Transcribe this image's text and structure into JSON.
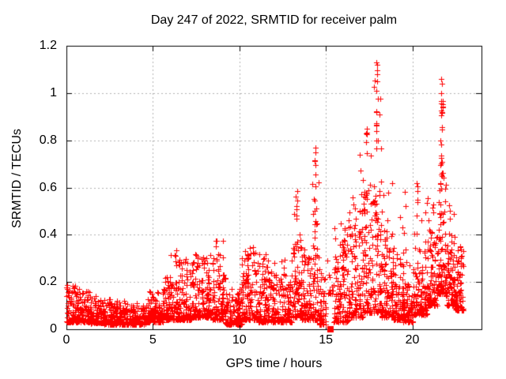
{
  "chart_data": {
    "type": "scatter",
    "title": "Day 247 of 2022, SRMTID for receiver palm",
    "xlabel": "GPS time / hours",
    "ylabel": "SRMTID / TECUs",
    "xlim": [
      0,
      24
    ],
    "ylim": [
      0,
      1.2
    ],
    "xticks": [
      0,
      5,
      10,
      15,
      20
    ],
    "xtick_labels": [
      "0",
      "5",
      "10",
      "15",
      "20"
    ],
    "yticks": [
      0,
      0.2,
      0.4,
      0.6,
      0.8,
      1,
      1.2
    ],
    "ytick_labels": [
      "0",
      "0.2",
      "0.4",
      "0.6",
      "0.8",
      "1",
      "1.2"
    ],
    "grid": true,
    "grid_style": "dotted-gray",
    "grid_color": "#b3b3b3",
    "border_color": "#000000",
    "marker": {
      "shape": "plus",
      "color": "#ff0000",
      "size": 7
    },
    "gap_marker": {
      "x": 15.28,
      "y": 0,
      "shape": "filled-square",
      "color": "#ff0000",
      "size": 8
    },
    "scatter_model": {
      "seed": 20220247,
      "tail_fraction": 0.07,
      "skew": 2.2,
      "segment_format": [
        "t0",
        "t1",
        "n",
        "y_lo",
        "y_hi",
        "y_tail_max"
      ],
      "segments": [
        [
          0.0,
          0.6,
          85,
          0.03,
          0.17,
          0.19
        ],
        [
          0.6,
          1.35,
          100,
          0.03,
          0.15,
          0.17
        ],
        [
          1.35,
          2.2,
          110,
          0.025,
          0.12,
          0.14
        ],
        [
          2.2,
          3.4,
          150,
          0.02,
          0.11,
          0.13
        ],
        [
          3.4,
          4.6,
          150,
          0.02,
          0.1,
          0.12
        ],
        [
          4.6,
          5.6,
          130,
          0.03,
          0.13,
          0.16
        ],
        [
          5.6,
          6.45,
          115,
          0.04,
          0.2,
          0.34
        ],
        [
          6.45,
          7.25,
          110,
          0.04,
          0.26,
          0.3
        ],
        [
          7.25,
          8.45,
          160,
          0.05,
          0.28,
          0.33
        ],
        [
          8.45,
          9.2,
          105,
          0.04,
          0.28,
          0.38
        ],
        [
          9.2,
          10.15,
          120,
          0.02,
          0.14,
          0.18
        ],
        [
          10.15,
          11.1,
          130,
          0.04,
          0.3,
          0.35
        ],
        [
          11.1,
          12.15,
          140,
          0.03,
          0.28,
          0.32
        ],
        [
          12.15,
          13.05,
          120,
          0.03,
          0.2,
          0.3
        ],
        [
          13.05,
          13.6,
          80,
          0.05,
          0.35,
          0.58
        ],
        [
          13.6,
          14.2,
          85,
          0.04,
          0.3,
          0.38
        ],
        [
          14.2,
          14.6,
          60,
          0.04,
          0.4,
          0.77
        ],
        [
          14.6,
          15.05,
          55,
          0.02,
          0.22,
          0.28
        ],
        [
          15.05,
          15.45,
          12,
          0.15,
          0.26,
          0.3
        ],
        [
          15.45,
          16.3,
          110,
          0.03,
          0.33,
          0.47
        ],
        [
          16.3,
          17.15,
          120,
          0.05,
          0.48,
          0.72
        ],
        [
          17.15,
          17.75,
          90,
          0.07,
          0.6,
          0.9
        ],
        [
          17.75,
          18.25,
          85,
          0.07,
          0.62,
          1.13
        ],
        [
          18.25,
          18.85,
          90,
          0.05,
          0.45,
          0.66
        ],
        [
          18.85,
          19.45,
          80,
          0.04,
          0.3,
          0.5
        ],
        [
          19.45,
          20.05,
          80,
          0.03,
          0.2,
          0.45
        ],
        [
          20.05,
          20.85,
          110,
          0.06,
          0.35,
          0.63
        ],
        [
          20.85,
          21.5,
          100,
          0.1,
          0.42,
          0.6
        ],
        [
          21.5,
          21.95,
          80,
          0.15,
          0.65,
          1.07
        ],
        [
          21.95,
          22.5,
          85,
          0.1,
          0.38,
          0.55
        ],
        [
          22.5,
          22.95,
          75,
          0.08,
          0.3,
          0.37
        ]
      ],
      "column_format": [
        "t_center",
        "t_width",
        "n",
        "y_lo",
        "y_hi"
      ],
      "columns": [
        [
          14.38,
          0.1,
          10,
          0.4,
          0.77
        ],
        [
          13.32,
          0.1,
          8,
          0.3,
          0.57
        ],
        [
          17.35,
          0.12,
          10,
          0.55,
          0.88
        ],
        [
          17.95,
          0.1,
          12,
          0.75,
          1.13
        ],
        [
          16.05,
          0.08,
          6,
          0.32,
          0.46
        ],
        [
          21.68,
          0.14,
          22,
          0.45,
          1.06
        ],
        [
          21.72,
          0.08,
          6,
          0.9,
          1.0
        ],
        [
          20.3,
          0.1,
          5,
          0.45,
          0.63
        ],
        [
          6.3,
          0.06,
          3,
          0.25,
          0.34
        ],
        [
          8.68,
          0.05,
          2,
          0.33,
          0.38
        ],
        [
          10.5,
          0.08,
          4,
          0.25,
          0.33
        ]
      ],
      "outlier_format": [
        "t",
        "y"
      ],
      "outliers": [
        [
          17.94,
          1.13
        ],
        [
          17.97,
          1.12
        ],
        [
          21.66,
          1.06
        ],
        [
          21.7,
          1.04
        ],
        [
          14.38,
          0.77
        ],
        [
          8.7,
          0.375
        ],
        [
          6.34,
          0.335
        ],
        [
          0.35,
          0.185
        ],
        [
          19.55,
          0.58
        ],
        [
          19.62,
          0.52
        ],
        [
          20.25,
          0.62
        ],
        [
          22.15,
          0.5
        ],
        [
          13.33,
          0.585
        ],
        [
          16.95,
          0.74
        ]
      ]
    }
  }
}
